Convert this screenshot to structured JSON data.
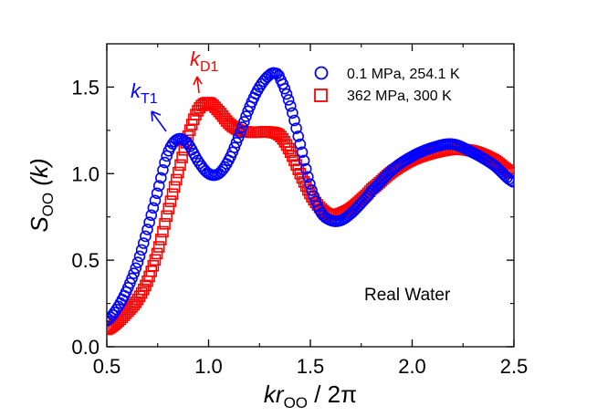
{
  "chart_data": {
    "type": "scatter",
    "xlabel": {
      "k": "kr",
      "sub": "OO",
      "rest": " / 2π"
    },
    "ylabel": {
      "main": "S",
      "sub": "OO",
      "rest": " (k)"
    },
    "xlim": [
      0.5,
      2.5
    ],
    "ylim": [
      0.0,
      1.75
    ],
    "xticks": [
      0.5,
      1.0,
      1.5,
      2.0,
      2.5
    ],
    "xtick_labels": [
      "0.5",
      "1.0",
      "1.5",
      "2.0",
      "2.5"
    ],
    "yticks": [
      0.0,
      0.5,
      1.0,
      1.5
    ],
    "ytick_labels": [
      "0.0",
      "0.5",
      "1.0",
      "1.5"
    ],
    "grid": false,
    "legend_position": "top-right",
    "series": [
      {
        "name": "0.1 MPa, 254.1 K",
        "marker": "circle",
        "color": "#0000ff",
        "x": [
          0.5,
          0.55,
          0.6,
          0.65,
          0.7,
          0.75,
          0.8,
          0.85,
          0.9,
          0.95,
          1.0,
          1.05,
          1.1,
          1.15,
          1.2,
          1.25,
          1.3,
          1.33,
          1.35,
          1.4,
          1.45,
          1.5,
          1.55,
          1.6,
          1.65,
          1.7,
          1.75,
          1.8,
          1.9,
          2.0,
          2.1,
          2.2,
          2.3,
          2.4,
          2.5
        ],
        "y": [
          0.15,
          0.22,
          0.33,
          0.48,
          0.68,
          0.9,
          1.12,
          1.2,
          1.17,
          1.07,
          1.0,
          1.0,
          1.08,
          1.22,
          1.38,
          1.5,
          1.57,
          1.58,
          1.55,
          1.4,
          1.17,
          0.93,
          0.78,
          0.73,
          0.73,
          0.77,
          0.83,
          0.9,
          1.02,
          1.1,
          1.15,
          1.17,
          1.12,
          1.05,
          0.95
        ]
      },
      {
        "name": "362 MPa, 300 K",
        "marker": "square",
        "color": "#ff0000",
        "x": [
          0.5,
          0.55,
          0.6,
          0.65,
          0.7,
          0.75,
          0.8,
          0.85,
          0.9,
          0.95,
          1.0,
          1.05,
          1.1,
          1.15,
          1.2,
          1.25,
          1.3,
          1.35,
          1.4,
          1.45,
          1.5,
          1.55,
          1.6,
          1.65,
          1.7,
          1.75,
          1.8,
          1.9,
          2.0,
          2.1,
          2.2,
          2.3,
          2.4,
          2.5
        ],
        "y": [
          0.1,
          0.14,
          0.2,
          0.27,
          0.38,
          0.55,
          0.78,
          1.0,
          1.22,
          1.37,
          1.41,
          1.36,
          1.29,
          1.25,
          1.24,
          1.24,
          1.24,
          1.22,
          1.13,
          1.0,
          0.88,
          0.8,
          0.76,
          0.77,
          0.8,
          0.85,
          0.91,
          1.01,
          1.08,
          1.12,
          1.14,
          1.13,
          1.08,
          1.0
        ]
      }
    ],
    "annotations": {
      "kT1": {
        "main": "k",
        "sub": "T1",
        "color": "#0000ff"
      },
      "kD1": {
        "main": "k",
        "sub": "D1",
        "color": "#ff0000"
      },
      "real_water": "Real Water"
    }
  }
}
